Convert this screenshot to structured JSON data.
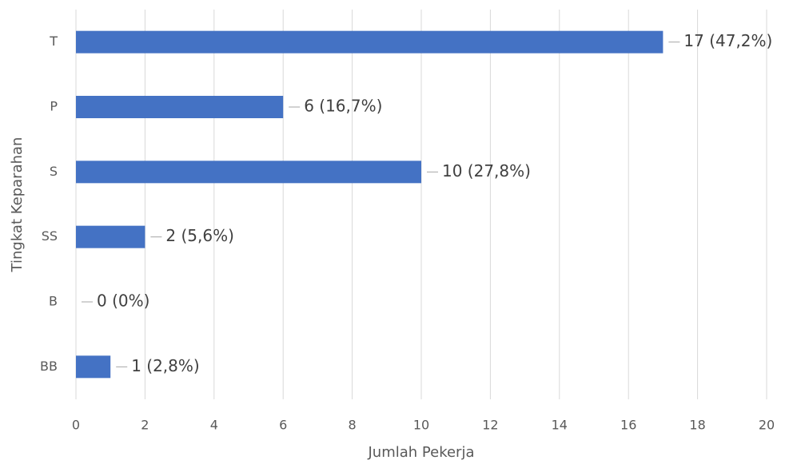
{
  "chart_data": {
    "type": "barh",
    "xlabel": "Jumlah Pekerja",
    "ylabel": "Tingkat Keparahan",
    "categories": [
      "T",
      "P",
      "S",
      "SS",
      "B",
      "BB"
    ],
    "values": [
      17,
      6,
      10,
      2,
      0,
      1
    ],
    "value_labels": [
      "17 (47,2%)",
      "6 (16,7%)",
      "10 (27,8%)",
      "2 (5,6%)",
      "0 (0%)",
      "1 (2,8%)"
    ],
    "color": "#4472c4",
    "xlim": [
      0,
      20
    ],
    "xticks": [
      0,
      2,
      4,
      6,
      8,
      10,
      12,
      14,
      16,
      18,
      20
    ],
    "grid": true
  }
}
